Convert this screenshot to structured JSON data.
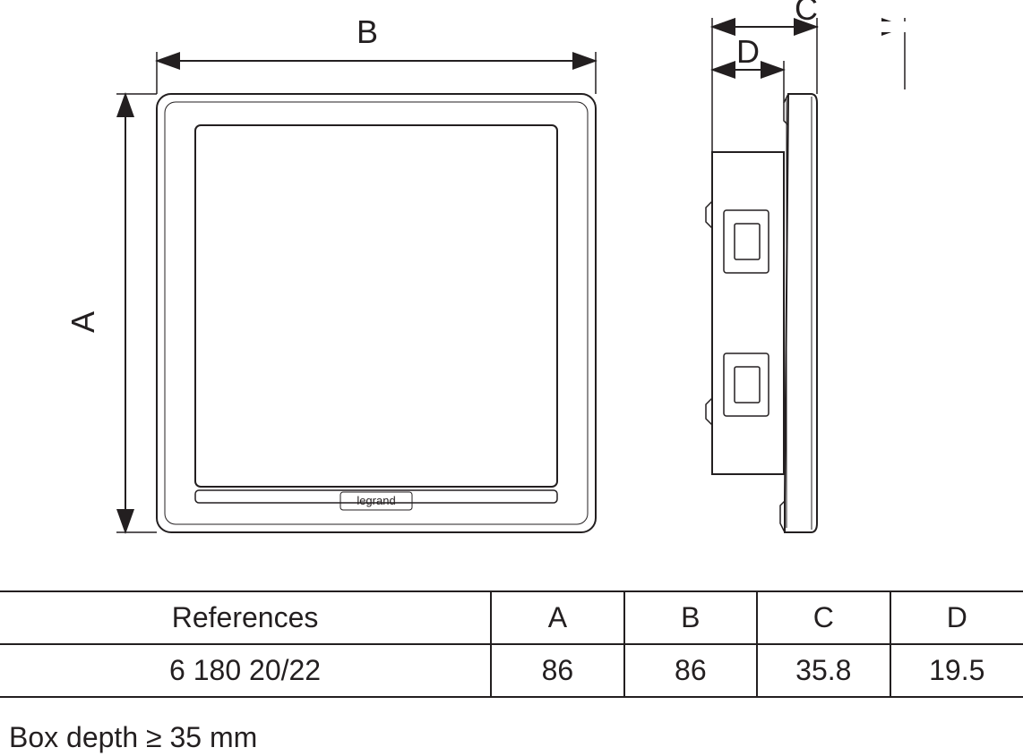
{
  "diagram": {
    "type": "engineering-drawing",
    "stroke_color": "#231f20",
    "background_color": "#ffffff",
    "stroke_width_main": 2,
    "stroke_width_thin": 1,
    "dim_labels": {
      "A": "A",
      "B": "B",
      "C": "C",
      "D": "D"
    },
    "brand_label": "legrand",
    "front_view": {
      "outer": 86,
      "inner_inset_ratio": 0.08
    },
    "side_view": {
      "depth_C": 35.8,
      "depth_D": 19.5
    }
  },
  "table": {
    "columns": [
      "References",
      "A",
      "B",
      "C",
      "D"
    ],
    "rows": [
      [
        "6 180 20/22",
        "86",
        "86",
        "35.8",
        "19.5"
      ]
    ],
    "column_widths_pct": [
      48,
      13,
      13,
      13,
      13
    ],
    "border_color": "#231f20",
    "font_size": 32
  },
  "note_text": "Box depth ≥ 35 mm"
}
